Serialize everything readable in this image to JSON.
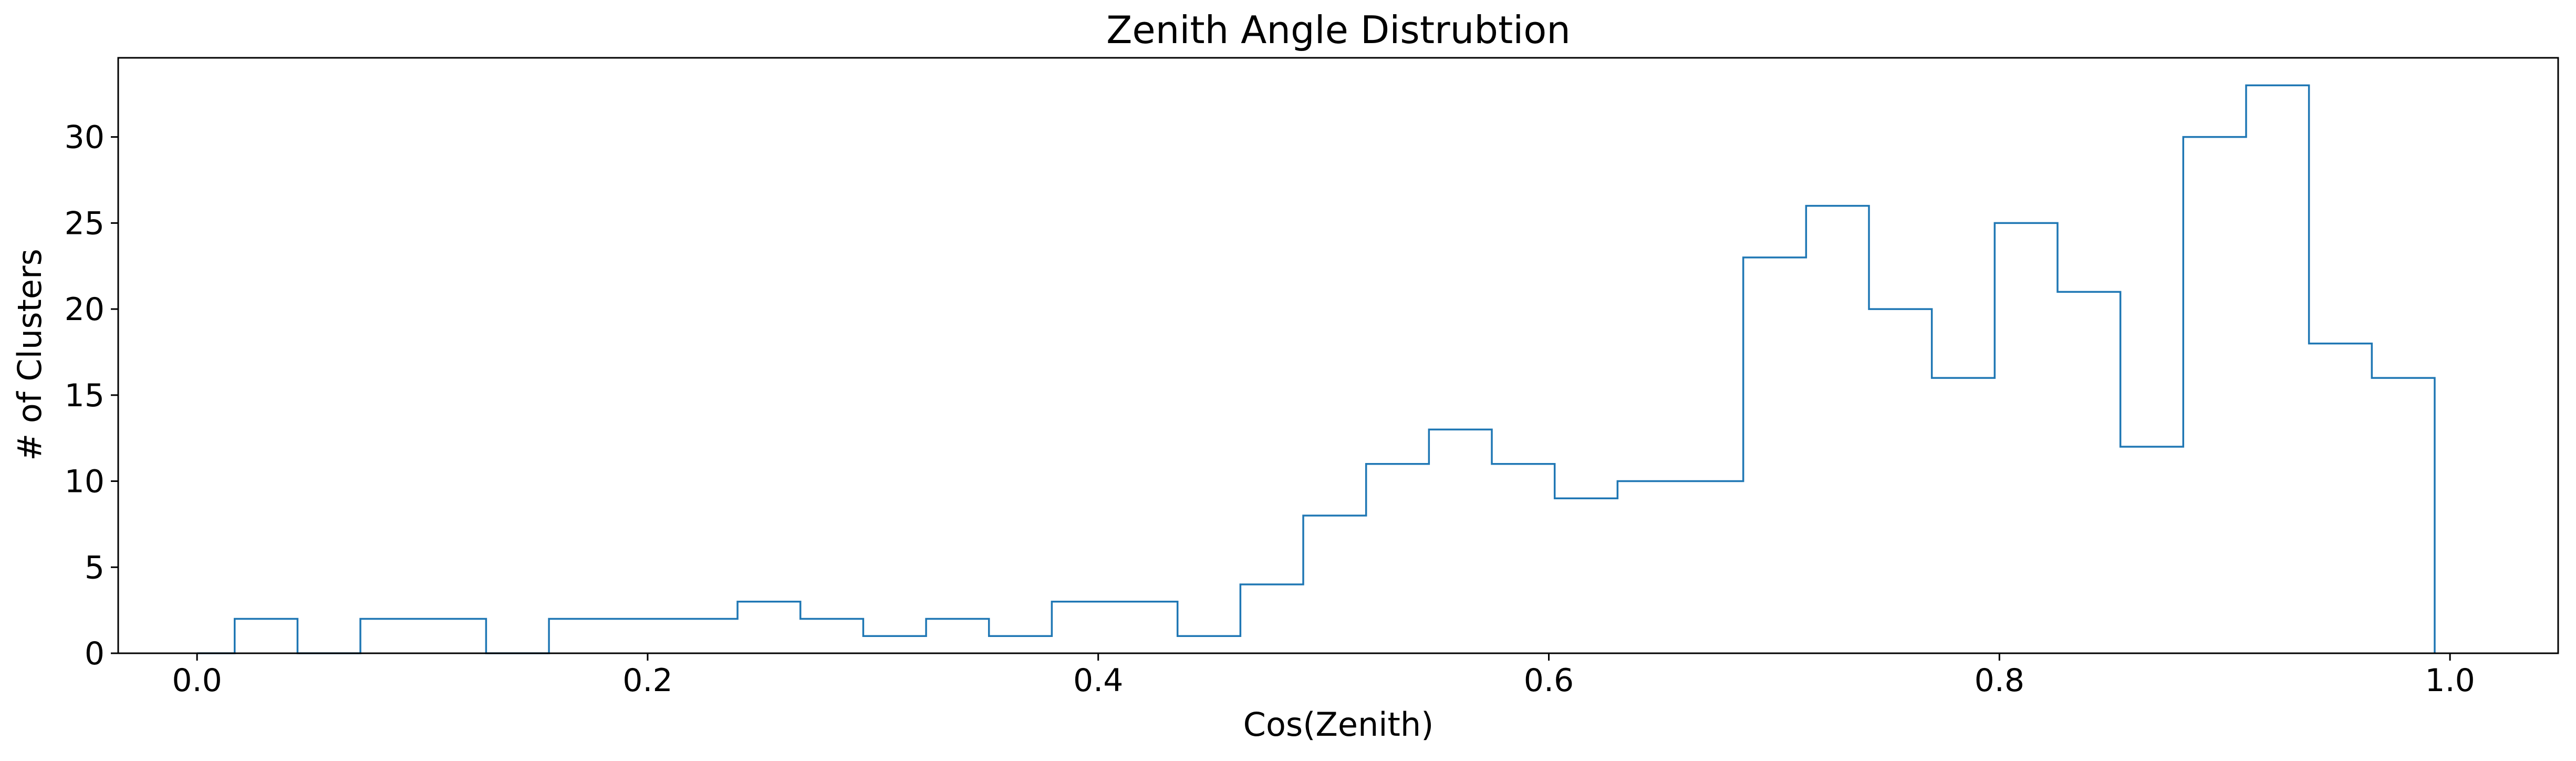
{
  "chart_data": {
    "type": "histogram-step",
    "title": "Zenith Angle Distrubtion",
    "xlabel": "Cos(Zenith)",
    "ylabel": "# of Clusters",
    "xlim": [
      -0.035,
      1.048
    ],
    "ylim": [
      0,
      34.6
    ],
    "xticks": [
      0.0,
      0.2,
      0.4,
      0.6,
      0.8,
      1.0
    ],
    "xtick_labels": [
      "0.0",
      "0.2",
      "0.4",
      "0.6",
      "0.8",
      "1.0"
    ],
    "yticks": [
      0,
      5,
      10,
      15,
      20,
      25,
      30
    ],
    "ytick_labels": [
      "0",
      "5",
      "10",
      "15",
      "20",
      "25",
      "30"
    ],
    "grid": false,
    "color": "#1f77b4",
    "bin_edges": [
      0.0,
      0.0167,
      0.0446,
      0.0725,
      0.1004,
      0.1283,
      0.1562,
      0.1841,
      0.212,
      0.2399,
      0.2678,
      0.2957,
      0.3236,
      0.3515,
      0.3794,
      0.4073,
      0.4352,
      0.4631,
      0.491,
      0.5189,
      0.5468,
      0.5747,
      0.6026,
      0.6305,
      0.6584,
      0.6863,
      0.7142,
      0.7421,
      0.77,
      0.7979,
      0.8258,
      0.8537,
      0.8816,
      0.9095,
      0.9374,
      0.9653,
      0.9932
    ],
    "counts": [
      0,
      2,
      0,
      2,
      2,
      0,
      2,
      2,
      2,
      3,
      2,
      1,
      2,
      1,
      3,
      3,
      1,
      4,
      8,
      11,
      13,
      11,
      9,
      10,
      10,
      23,
      26,
      20,
      16,
      25,
      21,
      12,
      30,
      33,
      18,
      16
    ]
  }
}
